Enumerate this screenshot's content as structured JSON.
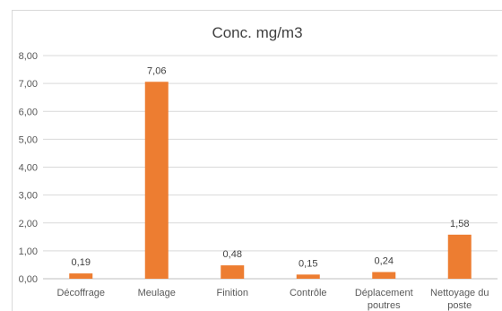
{
  "chart_data": {
    "type": "bar",
    "title": "Conc. mg/m3",
    "categories": [
      [
        "Décoffrage"
      ],
      [
        "Meulage"
      ],
      [
        "Finition"
      ],
      [
        "Contrôle"
      ],
      [
        "Déplacement",
        "poutres"
      ],
      [
        "Nettoyage du",
        "poste"
      ]
    ],
    "values": [
      0.19,
      7.06,
      0.48,
      0.15,
      0.24,
      1.58
    ],
    "data_labels": [
      "0,19",
      "7,06",
      "0,48",
      "0,15",
      "0,24",
      "1,58"
    ],
    "ylim": [
      0,
      8
    ],
    "yticks": [
      "0,00",
      "1,00",
      "2,00",
      "3,00",
      "4,00",
      "5,00",
      "6,00",
      "7,00",
      "8,00"
    ],
    "xlabel": "",
    "ylabel": "",
    "grid": true,
    "legend": "none",
    "bar_color": "#ED7D31"
  }
}
